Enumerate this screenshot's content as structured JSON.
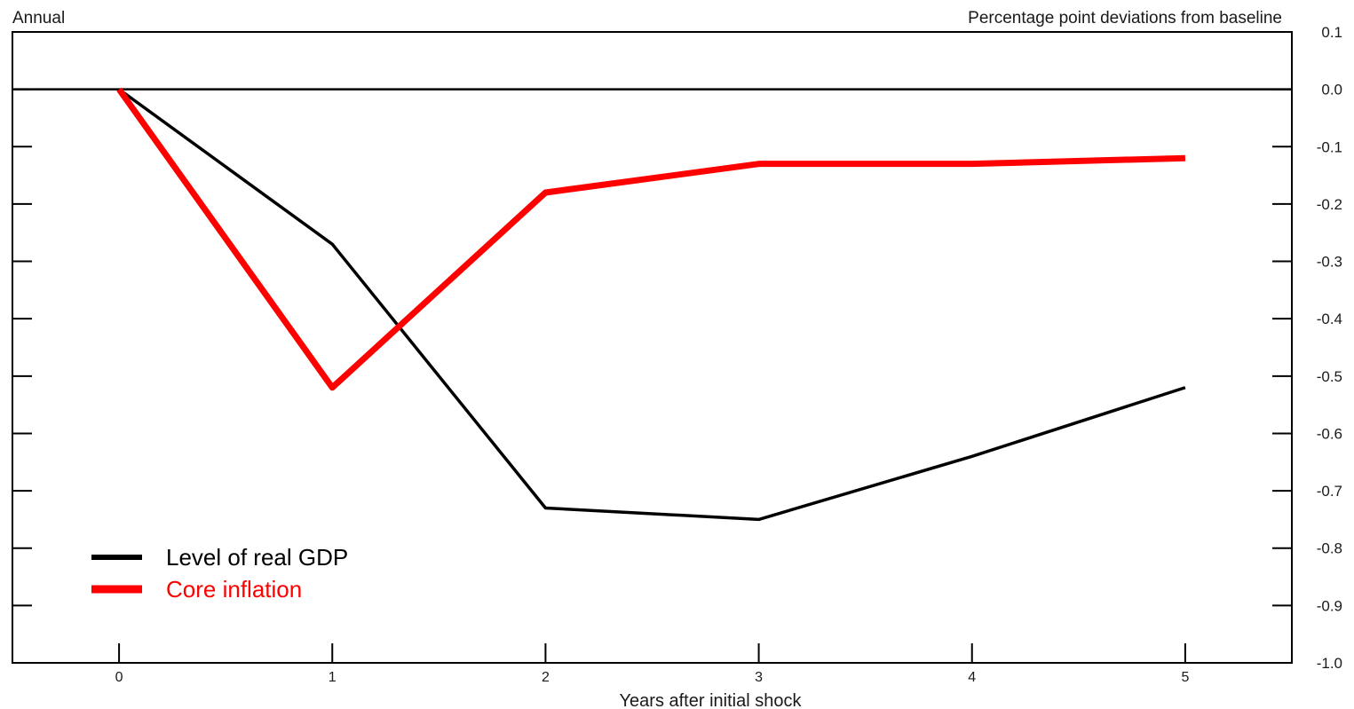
{
  "chart_data": {
    "type": "line",
    "frequency_label": "Annual",
    "units_label": "Percentage point deviations from baseline",
    "xlabel": "Years after initial shock",
    "x": [
      0,
      1,
      2,
      3,
      4,
      5
    ],
    "x_ticks": [
      "0",
      "1",
      "2",
      "3",
      "4",
      "5"
    ],
    "xlim": [
      -0.5,
      5.5
    ],
    "ylim": [
      -1.0,
      0.1
    ],
    "y_ticks": [
      "0.1",
      "0.0",
      "-0.1",
      "-0.2",
      "-0.3",
      "-0.4",
      "-0.5",
      "-0.6",
      "-0.7",
      "-0.8",
      "-0.9",
      "-1.0"
    ],
    "y_axis_side": "right",
    "zero_line": true,
    "grid": false,
    "legend_position": "bottom-left",
    "series": [
      {
        "name": "Level of real GDP",
        "color": "#000000",
        "values": [
          0.0,
          -0.27,
          -0.73,
          -0.75,
          -0.64,
          -0.52
        ]
      },
      {
        "name": "Core inflation",
        "color": "#ff0000",
        "values": [
          0.0,
          -0.52,
          -0.18,
          -0.13,
          -0.13,
          -0.12
        ]
      }
    ]
  }
}
